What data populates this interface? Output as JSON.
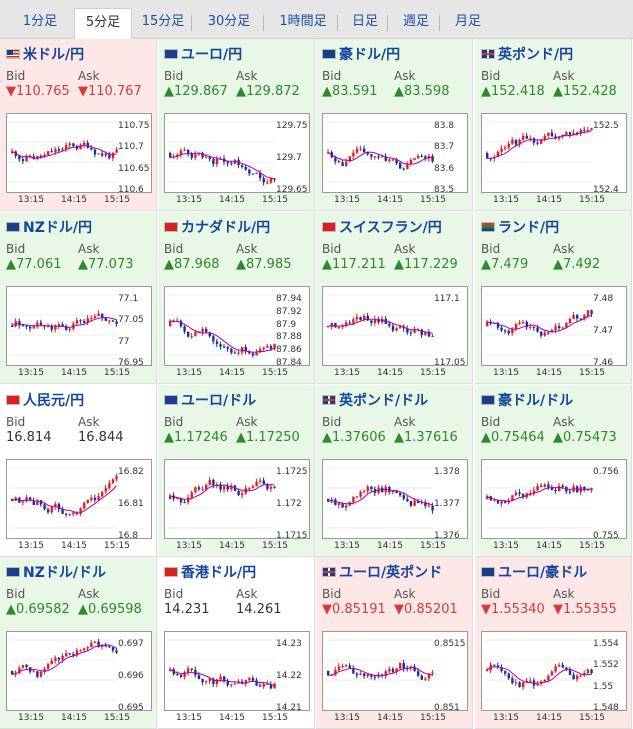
{
  "tabs": [
    "1分足",
    "5分足",
    "15分足",
    "30分足",
    "1時間足",
    "日足",
    "週足",
    "月足"
  ],
  "active_tab": "5分足",
  "labels": {
    "bid": "Bid",
    "ask": "Ask"
  },
  "cards": [
    {
      "name": "米ドル/円",
      "flag": "us",
      "trend": "down",
      "bid": "▼110.765",
      "ask": "▼110.767",
      "yticks": [
        "110.75",
        "110.7",
        "110.65",
        "110.6"
      ],
      "xticks": [
        "13:15",
        "14:15",
        "15:15"
      ]
    },
    {
      "name": "ユーロ/円",
      "flag": "eu",
      "trend": "up",
      "bid": "▲129.867",
      "ask": "▲129.872",
      "yticks": [
        "129.75",
        "129.7",
        "129.65"
      ],
      "xticks": [
        "13:15",
        "14:15",
        "15:15"
      ]
    },
    {
      "name": "豪ドル/円",
      "flag": "au",
      "trend": "up",
      "bid": "▲83.591",
      "ask": "▲83.598",
      "yticks": [
        "83.8",
        "83.7",
        "83.6",
        "83.5"
      ],
      "xticks": [
        "13:15",
        "14:15",
        "15:15"
      ]
    },
    {
      "name": "英ポンド/円",
      "flag": "gb",
      "trend": "up",
      "bid": "▲152.418",
      "ask": "▲152.428",
      "yticks": [
        "152.5",
        "152.4"
      ],
      "xticks": [
        "13:15",
        "14:15",
        "15:15"
      ]
    },
    {
      "name": "NZドル/円",
      "flag": "au",
      "trend": "up",
      "bid": "▲77.061",
      "ask": "▲77.073",
      "yticks": [
        "77.1",
        "77.05",
        "77",
        "76.95"
      ],
      "xticks": [
        "13:15",
        "14:15",
        "15:15"
      ]
    },
    {
      "name": "カナダドル/円",
      "flag": "ch",
      "trend": "up",
      "bid": "▲87.968",
      "ask": "▲87.985",
      "yticks": [
        "87.94",
        "87.92",
        "87.9",
        "87.88",
        "87.86",
        "87.84"
      ],
      "xticks": [
        "13:15",
        "14:15",
        "15:15"
      ]
    },
    {
      "name": "スイスフラン/円",
      "flag": "ch",
      "trend": "up",
      "bid": "▲117.211",
      "ask": "▲117.229",
      "yticks": [
        "117.1",
        "117.05"
      ],
      "xticks": [
        "13:15",
        "14:15",
        "15:15"
      ]
    },
    {
      "name": "ランド/円",
      "flag": "za",
      "trend": "up",
      "bid": "▲7.479",
      "ask": "▲7.492",
      "yticks": [
        "7.48",
        "7.47",
        "7.46"
      ],
      "xticks": [
        "13:15",
        "14:15",
        "15:15"
      ]
    },
    {
      "name": "人民元/円",
      "flag": "cn",
      "trend": "neutral",
      "bid": "16.814",
      "ask": "16.844",
      "yticks": [
        "16.82",
        "16.81",
        "16.8"
      ],
      "xticks": [
        "13:15",
        "14:15",
        "15:15"
      ]
    },
    {
      "name": "ユーロ/ドル",
      "flag": "eu",
      "trend": "up",
      "bid": "▲1.17246",
      "ask": "▲1.17250",
      "yticks": [
        "1.1725",
        "1.172",
        "1.1715"
      ],
      "xticks": [
        "13:15",
        "14:15",
        "15:15"
      ]
    },
    {
      "name": "英ポンド/ドル",
      "flag": "gb",
      "trend": "up",
      "bid": "▲1.37606",
      "ask": "▲1.37616",
      "yticks": [
        "1.378",
        "1.377",
        "1.376"
      ],
      "xticks": [
        "13:15",
        "14:15",
        "15:15"
      ]
    },
    {
      "name": "豪ドル/ドル",
      "flag": "au",
      "trend": "up",
      "bid": "▲0.75464",
      "ask": "▲0.75473",
      "yticks": [
        "0.756",
        "0.755"
      ],
      "xticks": [
        "13:15",
        "14:15",
        "15:15"
      ]
    },
    {
      "name": "NZドル/ドル",
      "flag": "au",
      "trend": "up",
      "bid": "▲0.69582",
      "ask": "▲0.69598",
      "yticks": [
        "0.697",
        "0.696",
        "0.695"
      ],
      "xticks": [
        "13:15",
        "14:15",
        "15:15"
      ]
    },
    {
      "name": "香港ドル/円",
      "flag": "hk",
      "trend": "neutral",
      "bid": "14.231",
      "ask": "14.261",
      "yticks": [
        "14.23",
        "14.22",
        "14.21"
      ],
      "xticks": [
        "13:15",
        "14:15",
        "15:15"
      ]
    },
    {
      "name": "ユーロ/英ポンド",
      "flag": "gb",
      "trend": "down",
      "bid": "▼0.85191",
      "ask": "▼0.85201",
      "yticks": [
        "0.8515",
        "0.851"
      ],
      "xticks": [
        "13:15",
        "14:15",
        "15:15"
      ]
    },
    {
      "name": "ユーロ/豪ドル",
      "flag": "au",
      "trend": "down",
      "bid": "▼1.55340",
      "ask": "▼1.55355",
      "yticks": [
        "1.554",
        "1.552",
        "1.55",
        "1.548"
      ],
      "xticks": [
        "13:15",
        "14:15",
        "15:15"
      ]
    }
  ],
  "colors": {
    "up_candle": "#e02020",
    "down_candle": "#1a2f9a",
    "ma_line": "#b000b0",
    "ma2_line": "#00a0a0"
  }
}
